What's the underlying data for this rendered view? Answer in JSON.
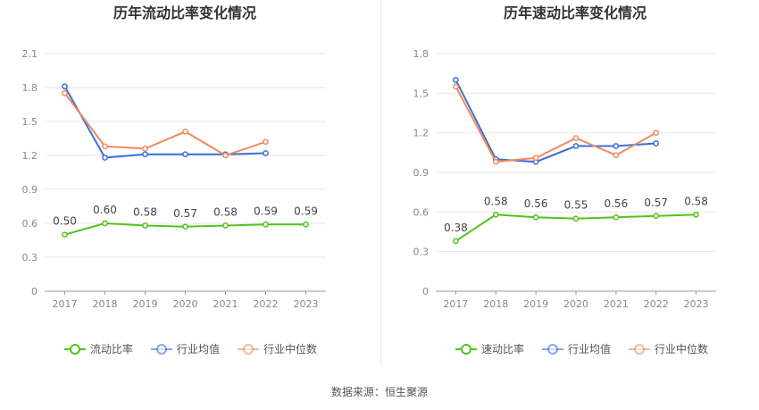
{
  "source_label": "数据来源：恒生聚源",
  "colors": {
    "main": "#52c41a",
    "avg": "#3a6fd8",
    "median": "#f08a5d",
    "grid": "#e6e6f0",
    "axis": "#999999",
    "tick_text": "#888888",
    "title": "#333333"
  },
  "chart_data": [
    {
      "type": "line",
      "title": "历年流动比率变化情况",
      "x": [
        "2017",
        "2018",
        "2019",
        "2020",
        "2021",
        "2022",
        "2023"
      ],
      "ylim": [
        0,
        2.1
      ],
      "yticks": [
        "0",
        "0.3",
        "0.6",
        "0.9",
        "1.2",
        "1.5",
        "1.8",
        "2.1"
      ],
      "grid": true,
      "legend": "bottom-center",
      "series": [
        {
          "name": "流动比率",
          "key": "main",
          "values": [
            0.5,
            0.6,
            0.58,
            0.57,
            0.58,
            0.59,
            0.59
          ],
          "labels": [
            "0.50",
            "0.60",
            "0.58",
            "0.57",
            "0.58",
            "0.59",
            "0.59"
          ]
        },
        {
          "name": "行业均值",
          "key": "avg",
          "values": [
            1.81,
            1.18,
            1.21,
            1.21,
            1.21,
            1.22,
            null
          ]
        },
        {
          "name": "行业中位数",
          "key": "median",
          "values": [
            1.75,
            1.28,
            1.26,
            1.41,
            1.2,
            1.32,
            null
          ]
        }
      ]
    },
    {
      "type": "line",
      "title": "历年速动比率变化情况",
      "x": [
        "2017",
        "2018",
        "2019",
        "2020",
        "2021",
        "2022",
        "2023"
      ],
      "ylim": [
        0,
        1.8
      ],
      "yticks": [
        "0",
        "0.3",
        "0.6",
        "0.9",
        "1.2",
        "1.5",
        "1.8"
      ],
      "grid": true,
      "legend": "bottom-center",
      "series": [
        {
          "name": "速动比率",
          "key": "main",
          "values": [
            0.38,
            0.58,
            0.56,
            0.55,
            0.56,
            0.57,
            0.58
          ],
          "labels": [
            "0.38",
            "0.58",
            "0.56",
            "0.55",
            "0.56",
            "0.57",
            "0.58"
          ]
        },
        {
          "name": "行业均值",
          "key": "avg",
          "values": [
            1.6,
            1.0,
            0.98,
            1.1,
            1.1,
            1.12,
            null
          ]
        },
        {
          "name": "行业中位数",
          "key": "median",
          "values": [
            1.55,
            0.98,
            1.01,
            1.16,
            1.03,
            1.2,
            null
          ]
        }
      ]
    }
  ]
}
